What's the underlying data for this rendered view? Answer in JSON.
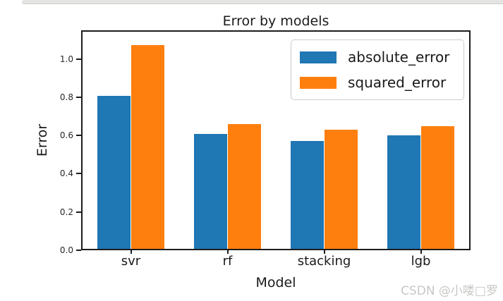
{
  "page": {
    "watermark": "CSDN @小喽□罗"
  },
  "chart_data": {
    "type": "bar",
    "title": "Error by models",
    "xlabel": "Model",
    "ylabel": "Error",
    "categories": [
      "svr",
      "rf",
      "stacking",
      "lgb"
    ],
    "series": [
      {
        "name": "absolute_error",
        "color": "#1f77b4",
        "values": [
          0.81,
          0.61,
          0.57,
          0.6
        ]
      },
      {
        "name": "squared_error",
        "color": "#ff7f0e",
        "values": [
          1.08,
          0.66,
          0.63,
          0.65
        ]
      }
    ],
    "ylim": [
      0,
      1.15
    ],
    "yticks": [
      "0.0",
      "0.2",
      "0.4",
      "0.6",
      "0.8",
      "1.0"
    ],
    "legend_position": "upper right",
    "grid": false,
    "bar_width_frac": 0.0875
  }
}
